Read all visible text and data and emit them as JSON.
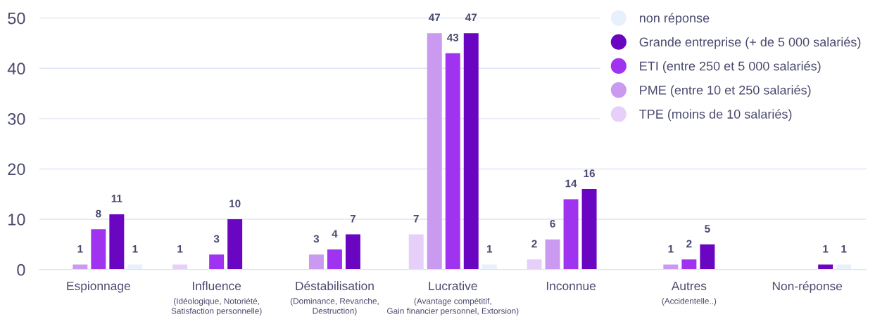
{
  "chart_data": {
    "type": "bar",
    "categories": [
      "Espionnage",
      "Influence\n(Idéologique, Notoriété,\nSatisfaction personnelle)",
      "Déstabilisation\n(Dominance, Revanche,\nDestruction)",
      "Lucrative\n(Avantage compétitif,\nGain financier personnel, Extorsion)",
      "Inconnue",
      "Autres\n(Accidentelle..)",
      "Non-réponse"
    ],
    "series": [
      {
        "name": "TPE (moins de 10 salariés)",
        "color": "#e6cff8",
        "values": [
          0,
          1,
          0,
          7,
          2,
          0,
          0
        ],
        "value_labels": [
          null,
          "1",
          null,
          "7",
          "2",
          null,
          null
        ]
      },
      {
        "name": "PME (entre 10 et 250 salariés)",
        "color": "#c99af0",
        "values": [
          1,
          0,
          3,
          47,
          6,
          1,
          0
        ],
        "value_labels": [
          "1",
          null,
          "3",
          "47",
          "6",
          "1",
          null
        ]
      },
      {
        "name": "ETI (entre 250 et 5 000 salariés)",
        "color": "#a033f0",
        "values": [
          8,
          3,
          4,
          43,
          14,
          2,
          0
        ],
        "value_labels": [
          "8",
          "3",
          "4",
          "43",
          "14",
          "2",
          null
        ]
      },
      {
        "name": "Grande entreprise (+ de 5 000 salariés)",
        "color": "#6a05c2",
        "values": [
          11,
          10,
          7,
          47,
          16,
          5,
          1
        ],
        "value_labels": [
          "11",
          "10",
          "7",
          "47",
          "16",
          "5",
          "1"
        ]
      },
      {
        "name": "non réponse",
        "color": "#e8f0fc",
        "values": [
          1,
          0,
          0,
          1,
          0,
          0,
          1
        ],
        "value_labels": [
          "1",
          null,
          null,
          "1",
          null,
          null,
          "1"
        ]
      }
    ],
    "ylim": [
      0,
      52
    ],
    "yticks": [
      0,
      10,
      20,
      30,
      40,
      50
    ],
    "grid": "y",
    "legend": "top right"
  }
}
